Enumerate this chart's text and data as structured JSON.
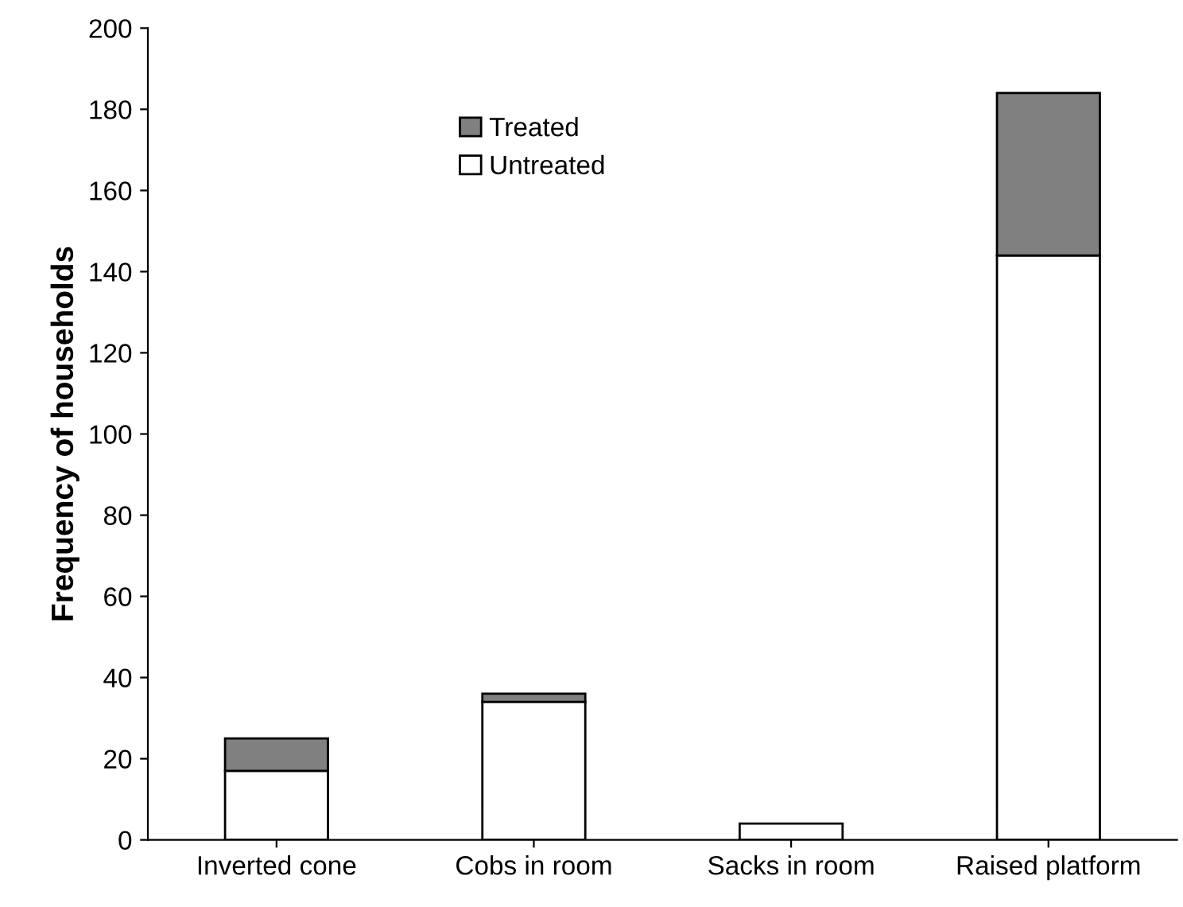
{
  "chart_data": {
    "type": "bar",
    "stacked": true,
    "ylabel": "Frequency of households",
    "categories": [
      "Inverted cone",
      "Cobs in room",
      "Sacks in room",
      "Raised platform"
    ],
    "series": [
      {
        "name": "Untreated",
        "color": "#ffffff",
        "values": [
          17,
          34,
          4,
          144
        ]
      },
      {
        "name": "Treated",
        "color": "#808080",
        "values": [
          8,
          2,
          null,
          40
        ]
      }
    ],
    "ylim": [
      0,
      200
    ],
    "yticks": [
      0,
      20,
      40,
      60,
      80,
      100,
      120,
      140,
      160,
      180,
      200
    ],
    "grid": false,
    "legend": "top left"
  }
}
